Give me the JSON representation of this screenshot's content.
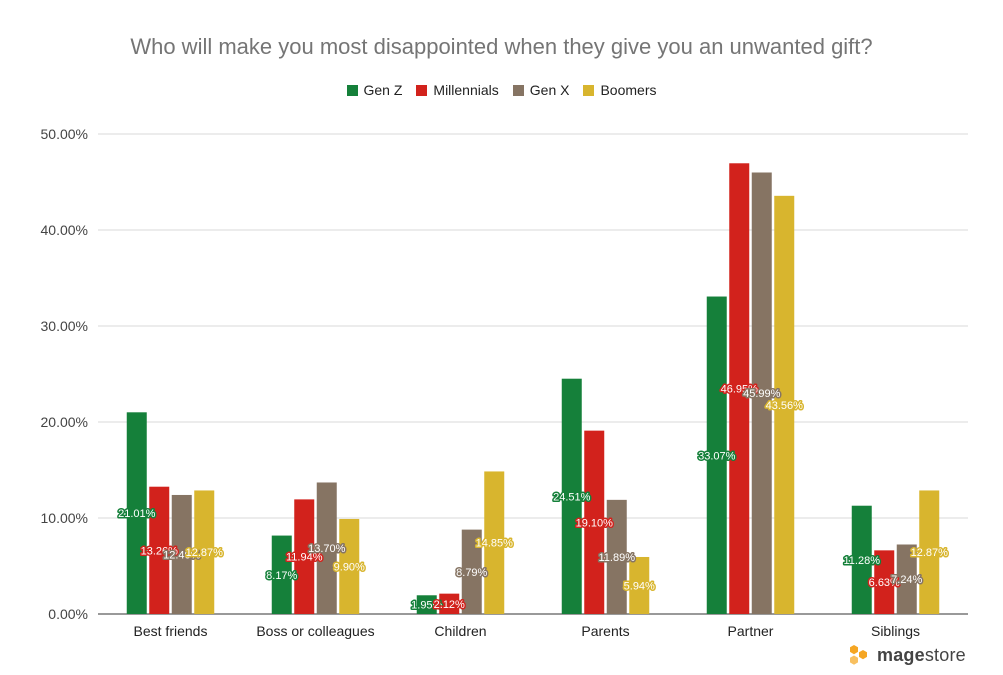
{
  "chart_data": {
    "type": "bar",
    "title": "Who will make you most disappointed when they give you an unwanted gift?",
    "categories": [
      "Best friends",
      "Boss or colleagues",
      "Children",
      "Parents",
      "Partner",
      "Siblings"
    ],
    "series": [
      {
        "name": "Gen Z",
        "color": "#15803a",
        "values": [
          21.01,
          8.17,
          1.95,
          24.51,
          33.07,
          11.28
        ],
        "labels": [
          "21.01%",
          "8.17%",
          "1.95%",
          "24.51%",
          "33.07%",
          "11.28%"
        ]
      },
      {
        "name": "Millennials",
        "color": "#d2221c",
        "values": [
          13.26,
          11.94,
          2.12,
          19.1,
          46.95,
          6.63
        ],
        "labels": [
          "13.26%",
          "11.94%",
          "2.12%",
          "19.10%",
          "46.95%",
          "6.63%"
        ]
      },
      {
        "name": "Gen X",
        "color": "#867463",
        "values": [
          12.4,
          13.7,
          8.79,
          11.89,
          45.99,
          7.24
        ],
        "labels": [
          "12.40%",
          "13.70%",
          "8.79%",
          "11.89%",
          "45.99%",
          "7.24%"
        ]
      },
      {
        "name": "Boomers",
        "color": "#d8b52e",
        "values": [
          12.87,
          9.9,
          14.85,
          5.94,
          43.56,
          12.87
        ],
        "labels": [
          "12.87%",
          "9.90%",
          "14.85%",
          "5.94%",
          "43.56%",
          "12.87%"
        ]
      }
    ],
    "yticks": [
      0,
      10,
      20,
      30,
      40,
      50
    ],
    "ytick_labels": [
      "0.00%",
      "10.00%",
      "20.00%",
      "30.00%",
      "40.00%",
      "50.00%"
    ],
    "ylim": [
      0,
      50
    ],
    "grid": true,
    "legend": "top-center"
  },
  "logo": {
    "brand_bold": "mage",
    "brand_light": "store",
    "icon": "hexagon-cluster-icon",
    "color": "#f5a623"
  }
}
